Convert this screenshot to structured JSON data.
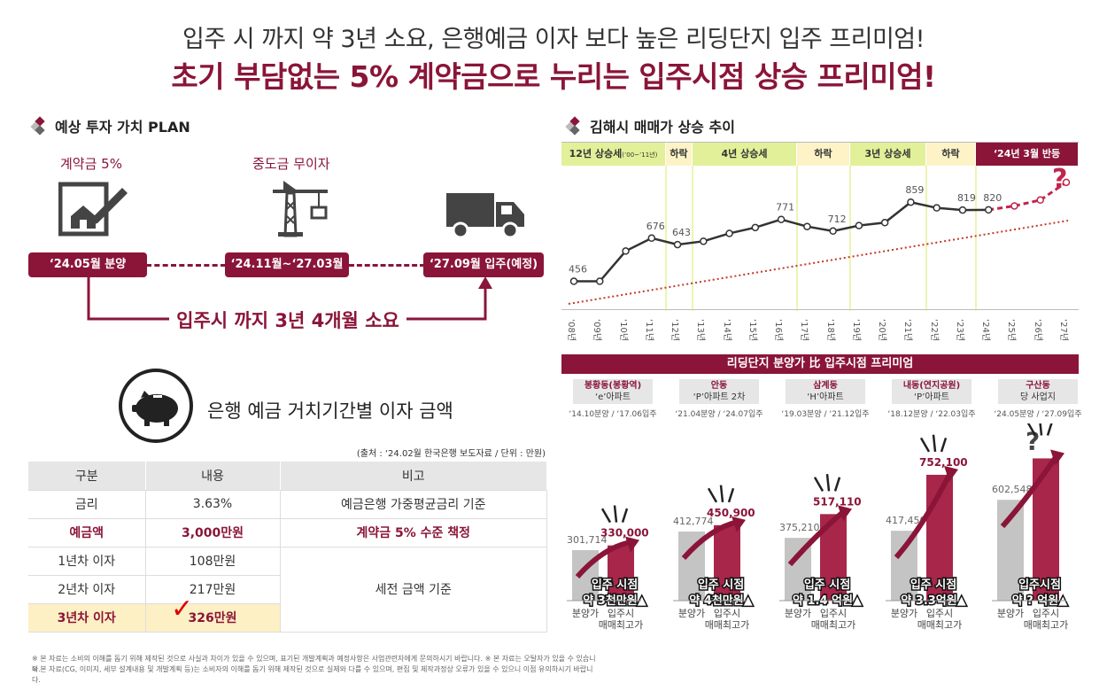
{
  "header": {
    "line1": "입주 시 까지 약 3년 소요,  은행예금 이자 보다 높은 리딩단지 입주 프리미엄!",
    "line2": "초기 부담없는 5% 계약금으로 누리는 입주시점 상승 프리미엄!"
  },
  "plan": {
    "title": "예상 투자 가치 PLAN",
    "step1_label": "계약금 5%",
    "step2_label": "중도금 무이자",
    "step1_date": "‘24.05월 분양",
    "step2_date": "‘24.11월~‘27.03월",
    "step3_date": "‘27.09월 입주(예정)",
    "duration": "입주시 까지 3년 4개월 소요"
  },
  "bank": {
    "title": "은행 예금 거치기간별 이자 금액",
    "source": "(출처 : ‘24.02월 한국은행 보도자료 / 단위 : 만원)",
    "headers": [
      "구분",
      "내용",
      "비고"
    ],
    "rows": [
      {
        "c1": "금리",
        "c2": "3.63%",
        "c3": "예금은행 가중평균금리 기준"
      },
      {
        "c1": "예금액",
        "c2": "3,000만원",
        "c3": "계약금 5% 수준 책정"
      },
      {
        "c1": "1년차 이자",
        "c2": "108만원"
      },
      {
        "c1": "2년차 이자",
        "c2": "217만원"
      },
      {
        "c1": "3년차 이자",
        "c2": "326만원"
      }
    ],
    "merged_note": "세전 금액 기준",
    "check_mark": "✓"
  },
  "notes": [
    "※ 본 자료는 소비의 이해를 돕기 위해 제작된 것으로 사실과 차이가 있을 수 있으며, 표기된 개발계획과 예정사항은 사업관련자에게 문의하시기 바랍니다.   ※ 본 자료는 오탈자가 있을 수 있습니다.",
    "※ 본 자료(CG, 이미지, 세부 설계내용 및 개발계획 등)는 소비자의 이해를 돕기 위해 제작된 것으로 실제와 다를 수 있으며, 편집 및 제작과정상 오류가 있을 수 있으니 이점 유의하시기 바랍니다."
  ],
  "trend": {
    "title": "김해시 매매가 상승 추이",
    "phases": [
      "12년 상승세",
      "(’00~’11년)",
      "하락",
      "4년 상승세",
      "하락",
      "3년 상승세",
      "하락",
      "‘24년 3월 반등"
    ],
    "question": "?",
    "years": [
      "‘08년",
      "‘09년",
      "‘10년",
      "‘11년",
      "‘12년",
      "‘13년",
      "‘14년",
      "‘15년",
      "‘16년",
      "‘17년",
      "‘18년",
      "‘19년",
      "‘20년",
      "‘21년",
      "‘22년",
      "‘23년",
      "‘24년",
      "‘25년",
      "‘26년",
      "‘27년"
    ],
    "labels": [
      "456",
      "676",
      "643",
      "771",
      "712",
      "859",
      "819",
      "820"
    ]
  },
  "chart_data": {
    "type": "line",
    "title": "김해시 매매가 상승 추이",
    "x": [
      "‘08",
      "‘09",
      "‘10",
      "‘11",
      "‘12",
      "‘13",
      "‘14",
      "‘15",
      "‘16",
      "‘17",
      "‘18",
      "‘19",
      "‘20",
      "‘21",
      "‘22",
      "‘23",
      "‘24",
      "‘25",
      "‘26",
      "‘27"
    ],
    "series": [
      {
        "name": "매매가",
        "values": [
          456,
          456,
          610,
          676,
          643,
          660,
          700,
          730,
          771,
          735,
          712,
          740,
          755,
          859,
          830,
          819,
          820,
          null,
          null,
          null
        ]
      },
      {
        "name": "전망",
        "values": [
          null,
          null,
          null,
          null,
          null,
          null,
          null,
          null,
          null,
          null,
          null,
          null,
          null,
          null,
          null,
          null,
          820,
          840,
          870,
          960
        ]
      }
    ],
    "ylim": [
      350,
      1000
    ],
    "labeled_points": [
      {
        "x": "‘08",
        "y": 456
      },
      {
        "x": "‘11",
        "y": 676
      },
      {
        "x": "‘12",
        "y": 643
      },
      {
        "x": "‘16",
        "y": 771
      },
      {
        "x": "‘18",
        "y": 712
      },
      {
        "x": "‘21",
        "y": 859
      },
      {
        "x": "‘23",
        "y": 819
      },
      {
        "x": "‘24",
        "y": 820
      }
    ]
  },
  "premium": {
    "title": "리딩단지 분양가 比  입주시점  프리미엄",
    "sites": [
      {
        "loc": "봉황동(봉황역)",
        "apt": "‘e’아파트",
        "date": "‘14.10분양 / ‘17.06입주",
        "sale": 301714,
        "sale_label": "301,714",
        "market": 330000,
        "market_label": "330,000",
        "prem1": "입주 시점",
        "prem2": "약 3천만원▲"
      },
      {
        "loc": "안동",
        "apt": "‘P’아파트 2차",
        "date": "‘21.04분양 / ‘24.07입주",
        "sale": 412774,
        "sale_label": "412,774",
        "market": 450900,
        "market_label": "450,900",
        "prem1": "입주 시점",
        "prem2": "약 4천만원▲"
      },
      {
        "loc": "삼계동",
        "apt": "‘H’아파트",
        "date": "‘19.03분양 / ‘21.12입주",
        "sale": 375210,
        "sale_label": "375,210",
        "market": 517110,
        "market_label": "517,110",
        "prem1": "입주 시점",
        "prem2": "약 1.4 억원▲"
      },
      {
        "loc": "내동(연지공원)",
        "apt": "‘P’아파트",
        "date": "‘18.12분양 / ‘22.03입주",
        "sale": 417450,
        "sale_label": "417,450",
        "market": 752100,
        "market_label": "752,100",
        "prem1": "입주 시점",
        "prem2": "약 3.3억원▲"
      },
      {
        "loc": "구산동",
        "apt": "당 사업지",
        "date": "‘24.05분양 / ‘27.09입주",
        "sale": 602548,
        "sale_label": "602,548",
        "market": 850000,
        "market_label": "?",
        "prem1": "입주시점",
        "prem2": "약 ? 억원▲"
      }
    ],
    "x_sale": "분양가",
    "x_market1": "입주시",
    "x_market2": "매매최고가"
  },
  "colors": {
    "brand": "#8a1538",
    "phase_green": "#e3f09a",
    "phase_yellow": "#fdf3c7",
    "gray_bar": "#bdbdbd"
  }
}
